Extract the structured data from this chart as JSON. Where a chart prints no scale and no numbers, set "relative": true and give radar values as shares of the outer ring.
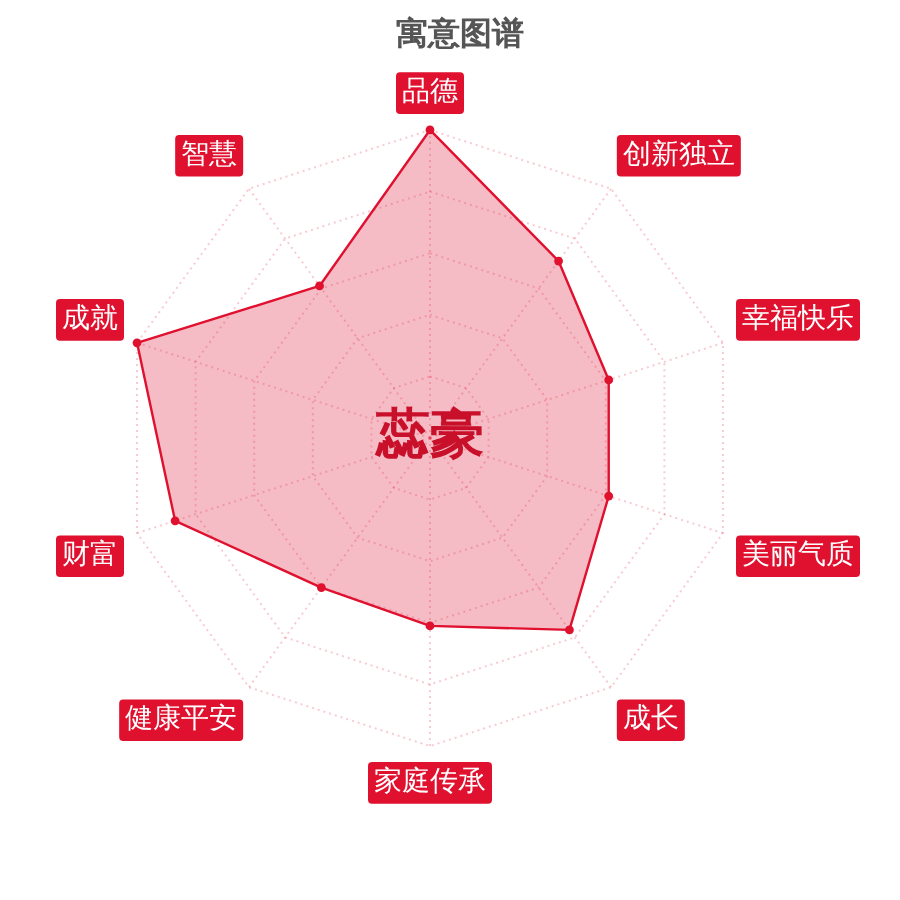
{
  "chart_data": {
    "type": "radar",
    "title": "寓意图谱",
    "categories": [
      "品德",
      "创新独立",
      "幸福快乐",
      "美丽气质",
      "成长",
      "家庭传承",
      "健康平安",
      "财富",
      "成就",
      "智慧"
    ],
    "series": [
      {
        "color": "#e0102f",
        "values": [
          1,
          0.71,
          0.61,
          0.61,
          0.77,
          0.61,
          0.6,
          0.87,
          1,
          0.61
        ]
      }
    ],
    "relative": true,
    "grid": true,
    "marker": "circle",
    "annotations": [
      "蕊豪"
    ]
  }
}
